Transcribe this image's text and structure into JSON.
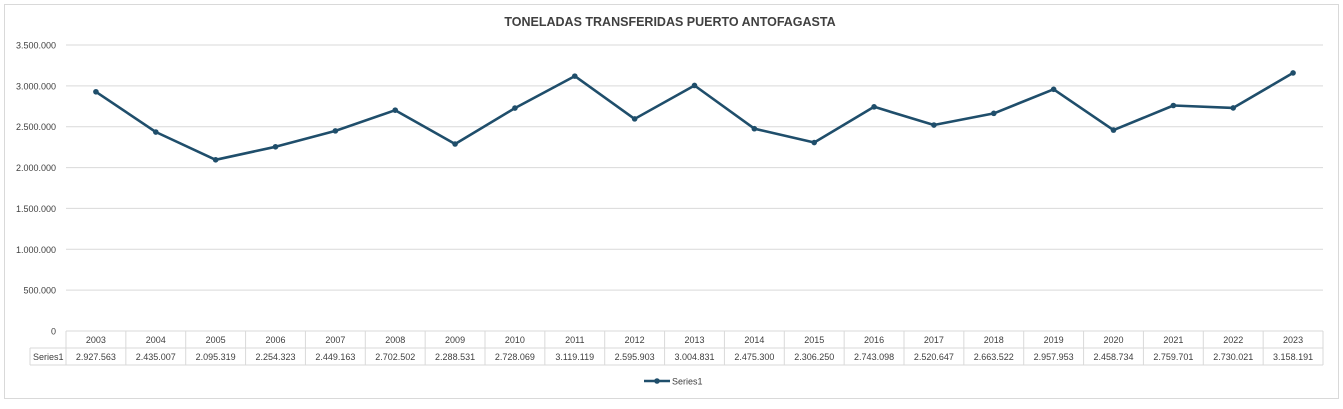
{
  "chart_data": {
    "type": "line",
    "title": "TONELADAS TRANSFERIDAS PUERTO ANTOFAGASTA",
    "categories": [
      "2003",
      "2004",
      "2005",
      "2006",
      "2007",
      "2008",
      "2009",
      "2010",
      "2011",
      "2012",
      "2013",
      "2014",
      "2015",
      "2016",
      "2017",
      "2018",
      "2019",
      "2020",
      "2021",
      "2022",
      "2023"
    ],
    "series": [
      {
        "name": "Series1",
        "values": [
          2927563,
          2435007,
          2095319,
          2254323,
          2449163,
          2702502,
          2288531,
          2728069,
          3119119,
          2595903,
          3004831,
          2475300,
          2306250,
          2743098,
          2520647,
          2663522,
          2957953,
          2458734,
          2759701,
          2730021,
          3158191
        ],
        "labels": [
          "2.927.563",
          "2.435.007",
          "2.095.319",
          "2.254.323",
          "2.449.163",
          "2.702.502",
          "2.288.531",
          "2.728.069",
          "3.119.119",
          "2.595.903",
          "3.004.831",
          "2.475.300",
          "2.306.250",
          "2.743.098",
          "2.520.647",
          "2.663.522",
          "2.957.953",
          "2.458.734",
          "2.759.701",
          "2.730.021",
          "3.158.191"
        ]
      }
    ],
    "ylim": [
      0,
      3500000
    ],
    "y_ticks": [
      0,
      500000,
      1000000,
      1500000,
      2000000,
      2500000,
      3000000,
      3500000
    ],
    "y_tick_labels": [
      "0",
      "500.000",
      "1.000.000",
      "1.500.000",
      "2.000.000",
      "2.500.000",
      "3.000.000",
      "3.500.000"
    ],
    "grid": true,
    "data_table": true,
    "legend": "bottom",
    "colors": {
      "series": "#1f4e6b",
      "grid": "#d9d9d9",
      "text": "#404040"
    }
  }
}
